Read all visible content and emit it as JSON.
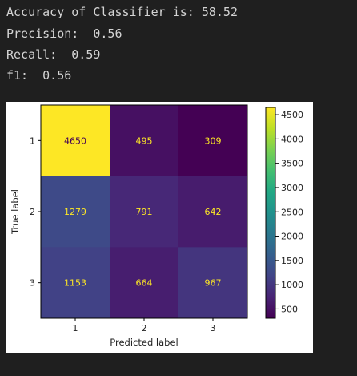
{
  "output": {
    "lines": [
      "Accuracy of Classifier is: 58.52",
      "Precision:  0.56",
      "Recall:  0.59",
      "f1:  0.56"
    ]
  },
  "chart_data": {
    "type": "heatmap",
    "title": "",
    "xlabel": "Predicted label",
    "ylabel": "True label",
    "x_categories": [
      "1",
      "2",
      "3"
    ],
    "y_categories": [
      "1",
      "2",
      "3"
    ],
    "values": [
      [
        4650,
        495,
        309
      ],
      [
        1279,
        791,
        642
      ],
      [
        1153,
        664,
        967
      ]
    ],
    "colormap": "viridis",
    "colorbar": {
      "min": 309,
      "max": 4650,
      "ticks": [
        500,
        1000,
        1500,
        2000,
        2500,
        3000,
        3500,
        4000,
        4500
      ]
    },
    "grid": false
  }
}
